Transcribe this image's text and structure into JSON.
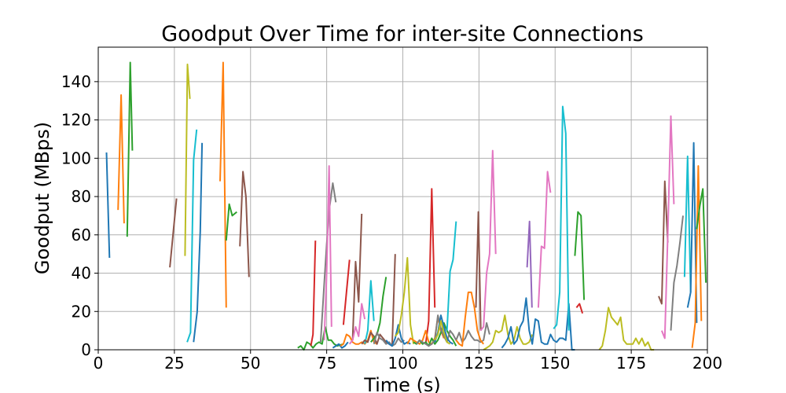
{
  "chart_data": {
    "type": "line",
    "title": "Goodput Over Time for inter-site Connections",
    "xlabel": "Time (s)",
    "ylabel": "Goodput (MBps)",
    "xlim": [
      0,
      200
    ],
    "ylim": [
      0,
      158
    ],
    "xticks": [
      0,
      25,
      50,
      75,
      100,
      125,
      150,
      175,
      200
    ],
    "yticks": [
      0,
      20,
      40,
      60,
      80,
      100,
      120,
      140
    ],
    "grid": true,
    "palette": [
      "#1f77b4",
      "#ff7f0e",
      "#2ca02c",
      "#d62728",
      "#9467bd",
      "#8c564b",
      "#e377c2",
      "#7f7f7f",
      "#bcbd22",
      "#17becf"
    ],
    "series": [
      {
        "color": "#1f77b4",
        "x": [
          2.7,
          3.7
        ],
        "y": [
          103,
          48
        ]
      },
      {
        "color": "#ff7f0e",
        "x": [
          6.5,
          7.5,
          8.5
        ],
        "y": [
          73,
          133,
          66
        ]
      },
      {
        "color": "#2ca02c",
        "x": [
          9.5,
          10.5,
          11.2
        ],
        "y": [
          59,
          150,
          104
        ]
      },
      {
        "color": "#8c564b",
        "x": [
          23.5,
          25.7
        ],
        "y": [
          43,
          79
        ]
      },
      {
        "color": "#bcbd22",
        "x": [
          28.5,
          29.3,
          30.1
        ],
        "y": [
          49,
          149,
          131
        ]
      },
      {
        "color": "#17becf",
        "x": [
          29.2,
          30.3,
          31.3,
          32.3
        ],
        "y": [
          4,
          9,
          99,
          115
        ]
      },
      {
        "color": "#1f77b4",
        "x": [
          31.3,
          32.5,
          33.5,
          34.1
        ],
        "y": [
          4,
          20,
          62,
          108
        ]
      },
      {
        "color": "#ff7f0e",
        "x": [
          40.0,
          41.0,
          42.0
        ],
        "y": [
          88,
          150,
          22
        ]
      },
      {
        "color": "#2ca02c",
        "x": [
          42.0,
          43.0,
          44.0,
          45.5
        ],
        "y": [
          57,
          76,
          70,
          72
        ]
      },
      {
        "color": "#8c564b",
        "x": [
          46.5,
          47.5,
          48.5,
          49.5
        ],
        "y": [
          54,
          93,
          80,
          38
        ]
      },
      {
        "color": "#2ca02c",
        "x": [
          65.5,
          66.5,
          67.5,
          68.5,
          69.5,
          70.5,
          71.5,
          72.5,
          73.5,
          74.5,
          75.5,
          76.5,
          77.5,
          78.5,
          80.5
        ],
        "y": [
          1,
          2,
          0,
          4,
          3,
          1,
          3,
          4,
          3,
          12,
          5,
          5,
          3,
          2,
          3
        ]
      },
      {
        "color": "#d62728",
        "x": [
          69.8,
          70.5,
          71.3
        ],
        "y": [
          2,
          8,
          57
        ]
      },
      {
        "color": "#7f7f7f",
        "x": [
          73.0,
          74.0,
          75.0,
          76.0,
          77.0,
          78.0
        ],
        "y": [
          4,
          30,
          55,
          75,
          87,
          77
        ]
      },
      {
        "color": "#e377c2",
        "x": [
          74.2,
          75.0,
          75.8,
          76.6
        ],
        "y": [
          5,
          40,
          96,
          12
        ]
      },
      {
        "color": "#1f77b4",
        "x": [
          77.0,
          78.0,
          79.0,
          80.0,
          81.0,
          82.0
        ],
        "y": [
          1,
          2,
          3,
          1,
          2,
          4
        ]
      },
      {
        "color": "#d62728",
        "x": [
          80.5,
          81.5,
          82.5
        ],
        "y": [
          13,
          30,
          47
        ]
      },
      {
        "color": "#8c564b",
        "x": [
          83.5,
          84.5,
          85.5,
          86.5
        ],
        "y": [
          5,
          46,
          25,
          71
        ]
      },
      {
        "color": "#ff7f0e",
        "x": [
          79.5,
          80.5,
          81.5,
          82.5,
          83.5,
          84.5,
          85.5,
          86.5,
          87.5,
          88.5,
          89.5,
          90.5,
          91.5
        ],
        "y": [
          2,
          3,
          8,
          7,
          4,
          3,
          3,
          4,
          3,
          5,
          10,
          4,
          3
        ]
      },
      {
        "color": "#e377c2",
        "x": [
          82.5,
          83.5,
          84.5,
          85.5,
          86.5,
          87.5
        ],
        "y": [
          3,
          5,
          12,
          7,
          24,
          16
        ]
      },
      {
        "color": "#17becf",
        "x": [
          87.5,
          88.5,
          89.5,
          90.5
        ],
        "y": [
          3,
          10,
          36,
          15
        ]
      },
      {
        "color": "#8c564b",
        "x": [
          86.5,
          87.5,
          88.5,
          89.5,
          90.5,
          91.5,
          92.5,
          93.5,
          94.5,
          95.5,
          96.5,
          97.5
        ],
        "y": [
          3,
          5,
          4,
          9,
          7,
          3,
          8,
          6,
          4,
          3,
          2,
          50
        ]
      },
      {
        "color": "#2ca02c",
        "x": [
          89.5,
          90.5,
          91.5,
          92.5,
          93.5,
          94.5
        ],
        "y": [
          4,
          6,
          8,
          14,
          28,
          38
        ]
      },
      {
        "color": "#7f7f7f",
        "x": [
          90.5,
          91.5,
          92.5,
          93.5,
          94.5,
          95.5,
          96.5,
          97.5,
          98.5,
          99.5,
          100.5
        ],
        "y": [
          3,
          9,
          6,
          5,
          3,
          4,
          2,
          3,
          6,
          4,
          5
        ]
      },
      {
        "color": "#1f77b4",
        "x": [
          94.5,
          95.5,
          96.5,
          97.5,
          98.5,
          99.5,
          100.5,
          101.5,
          102.5
        ],
        "y": [
          5,
          3,
          2,
          6,
          13,
          6,
          3,
          4,
          3
        ]
      },
      {
        "color": "#bcbd22",
        "x": [
          97.5,
          98.5,
          99.5,
          100.5,
          101.5,
          102.5,
          103.5
        ],
        "y": [
          7,
          9,
          18,
          30,
          48,
          13,
          3
        ]
      },
      {
        "color": "#d62728",
        "x": [
          107.5,
          108.5,
          109.5,
          110.5
        ],
        "y": [
          3,
          15,
          84,
          22
        ]
      },
      {
        "color": "#ff7f0e",
        "x": [
          101.5,
          102.5,
          103.5,
          104.5,
          105.5,
          106.5,
          107.5,
          108.5,
          109.5,
          110.5,
          111.5,
          112.5,
          113.5
        ],
        "y": [
          3,
          6,
          5,
          4,
          3,
          5,
          10,
          4,
          3,
          6,
          17,
          10,
          6
        ]
      },
      {
        "color": "#2ca02c",
        "x": [
          103.5,
          104.5,
          105.5,
          106.5,
          107.5,
          108.5,
          109.5,
          110.5,
          111.5,
          112.5,
          113.5,
          114.5,
          115.5,
          116.5,
          117.5
        ],
        "y": [
          4,
          3,
          5,
          3,
          4,
          2,
          6,
          3,
          5,
          9,
          14,
          10,
          7,
          5,
          2
        ]
      },
      {
        "color": "#7f7f7f",
        "x": [
          104.5,
          105.5,
          106.5,
          107.5,
          108.5,
          109.5,
          110.5,
          111.5,
          112.5,
          113.5,
          114.5,
          115.5,
          116.5,
          117.5,
          118.5,
          119.5,
          120.5,
          121.5,
          122.5,
          123.5,
          124.5,
          125.5,
          126.5,
          127.5,
          128.5
        ],
        "y": [
          3,
          5,
          4,
          3,
          2,
          3,
          5,
          18,
          11,
          7,
          4,
          10,
          8,
          5,
          9,
          4,
          6,
          10,
          7,
          5,
          5,
          4,
          5,
          14,
          8
        ]
      },
      {
        "color": "#1f77b4",
        "x": [
          110.5,
          111.5,
          112.5,
          113.5,
          114.5,
          115.5,
          116.5
        ],
        "y": [
          4,
          9,
          18,
          12,
          6,
          4,
          3
        ]
      },
      {
        "color": "#17becf",
        "x": [
          114.5,
          115.5,
          116.5,
          117.5
        ],
        "y": [
          10,
          41,
          47,
          67
        ]
      },
      {
        "color": "#bcbd22",
        "x": [
          110.5,
          111.5,
          112.5,
          113.5,
          114.5,
          115.5
        ],
        "y": [
          5,
          8,
          15,
          9,
          4,
          3
        ]
      },
      {
        "color": "#ff7f0e",
        "x": [
          117.5,
          118.5,
          119.5,
          120.5,
          121.5,
          122.5,
          123.5,
          124.5,
          125.5,
          126.5
        ],
        "y": [
          5,
          3,
          2,
          17,
          30,
          30,
          22,
          10,
          5,
          3
        ]
      },
      {
        "color": "#8c564b",
        "x": [
          124.0,
          124.8,
          125.6
        ],
        "y": [
          22,
          72,
          10
        ]
      },
      {
        "color": "#e377c2",
        "x": [
          125.5,
          126.5,
          127.5,
          128.5,
          129.5,
          130.5
        ],
        "y": [
          10,
          12,
          40,
          50,
          104,
          50
        ]
      },
      {
        "color": "#bcbd22",
        "x": [
          126.5,
          127.5,
          128.5,
          129.5,
          130.5,
          131.5,
          132.5,
          133.5,
          134.5,
          135.5,
          136.5,
          137.5,
          138.5,
          139.5,
          140.5,
          141.5,
          142.5
        ],
        "y": [
          0,
          1,
          2,
          4,
          10,
          9,
          10,
          18,
          8,
          3,
          5,
          12,
          6,
          3,
          3,
          4,
          8
        ]
      },
      {
        "color": "#1f77b4",
        "x": [
          132.5,
          133.5,
          134.5,
          135.5,
          136.5,
          137.5,
          138.5,
          139.5,
          140.5,
          141.5,
          142.5,
          143.5,
          144.5,
          145.5,
          146.5,
          147.5,
          148.5,
          149.5,
          150.5,
          151.5,
          152.5,
          153.5,
          154.5,
          155.5,
          156.5
        ],
        "y": [
          1,
          3,
          6,
          12,
          3,
          5,
          12,
          15,
          27,
          10,
          3,
          16,
          15,
          4,
          3,
          3,
          8,
          5,
          4,
          6,
          6,
          5,
          24,
          0,
          0
        ]
      },
      {
        "color": "#9467bd",
        "x": [
          140.8,
          141.6,
          142.4
        ],
        "y": [
          43,
          67,
          22
        ]
      },
      {
        "color": "#e377c2",
        "x": [
          144.5,
          145.5,
          146.5,
          147.5,
          148.5
        ],
        "y": [
          22,
          54,
          53,
          93,
          82
        ]
      },
      {
        "color": "#17becf",
        "x": [
          149.5,
          150.5,
          151.5,
          152.5,
          153.5,
          154.5
        ],
        "y": [
          11,
          13,
          30,
          127,
          113,
          10
        ]
      },
      {
        "color": "#2ca02c",
        "x": [
          156.5,
          157.5,
          158.5,
          159.5
        ],
        "y": [
          49,
          72,
          70,
          26
        ]
      },
      {
        "color": "#d62728",
        "x": [
          157.0,
          158.0,
          159.0
        ],
        "y": [
          22,
          24,
          19
        ]
      },
      {
        "color": "#bcbd22",
        "x": [
          164.5,
          165.5,
          166.5,
          167.5,
          168.5,
          169.5,
          170.5,
          171.5,
          172.5,
          173.5,
          174.5,
          175.5,
          176.5,
          177.5,
          178.5,
          179.5,
          180.5,
          181.5,
          182.5
        ],
        "y": [
          0,
          2,
          10,
          22,
          17,
          15,
          13,
          17,
          5,
          3,
          3,
          3,
          6,
          3,
          6,
          2,
          4,
          0,
          0
        ]
      },
      {
        "color": "#8c564b",
        "x": [
          184.0,
          185.0,
          186.0,
          187.0
        ],
        "y": [
          28,
          24,
          88,
          56
        ]
      },
      {
        "color": "#e377c2",
        "x": [
          185.0,
          186.0,
          187.0,
          188.0,
          189.0
        ],
        "y": [
          10,
          6,
          60,
          122,
          76
        ]
      },
      {
        "color": "#7f7f7f",
        "x": [
          188.0,
          189.0,
          190.0,
          191.0,
          192.0
        ],
        "y": [
          10,
          35,
          44,
          56,
          70
        ]
      },
      {
        "color": "#17becf",
        "x": [
          192.5,
          193.5,
          194.5
        ],
        "y": [
          38,
          101,
          30
        ]
      },
      {
        "color": "#1f77b4",
        "x": [
          193.5,
          194.5,
          195.5,
          196.5
        ],
        "y": [
          22,
          30,
          108,
          14
        ]
      },
      {
        "color": "#ff7f0e",
        "x": [
          195.0,
          196.0,
          197.0,
          198.0
        ],
        "y": [
          1,
          14,
          96,
          15
        ]
      },
      {
        "color": "#2ca02c",
        "x": [
          196.5,
          197.5,
          198.5,
          199.5
        ],
        "y": [
          63,
          75,
          84,
          35
        ]
      }
    ]
  }
}
